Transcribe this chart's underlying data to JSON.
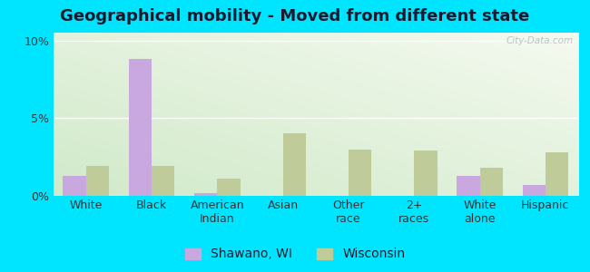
{
  "title": "Geographical mobility - Moved from different state",
  "categories": [
    "White",
    "Black",
    "American\nIndian",
    "Asian",
    "Other\nrace",
    "2+\nraces",
    "White\nalone",
    "Hispanic"
  ],
  "shawano_values": [
    1.3,
    8.8,
    0.2,
    0.0,
    0.0,
    0.0,
    1.3,
    0.7
  ],
  "wisconsin_values": [
    1.9,
    1.9,
    1.1,
    4.0,
    3.0,
    2.9,
    1.8,
    2.8
  ],
  "shawano_color": "#c9a8e0",
  "wisconsin_color": "#bfcc99",
  "bar_width": 0.35,
  "ylim": [
    0,
    10.5
  ],
  "yticks": [
    0,
    5,
    10
  ],
  "ytick_labels": [
    "0%",
    "5%",
    "10%"
  ],
  "bg_left_bottom": "#c8e6c0",
  "bg_right_top": "#f0f5e8",
  "outer_bg": "#00e5ff",
  "title_fontsize": 13,
  "axis_label_fontsize": 9,
  "legend_fontsize": 10,
  "watermark": "City-Data.com"
}
